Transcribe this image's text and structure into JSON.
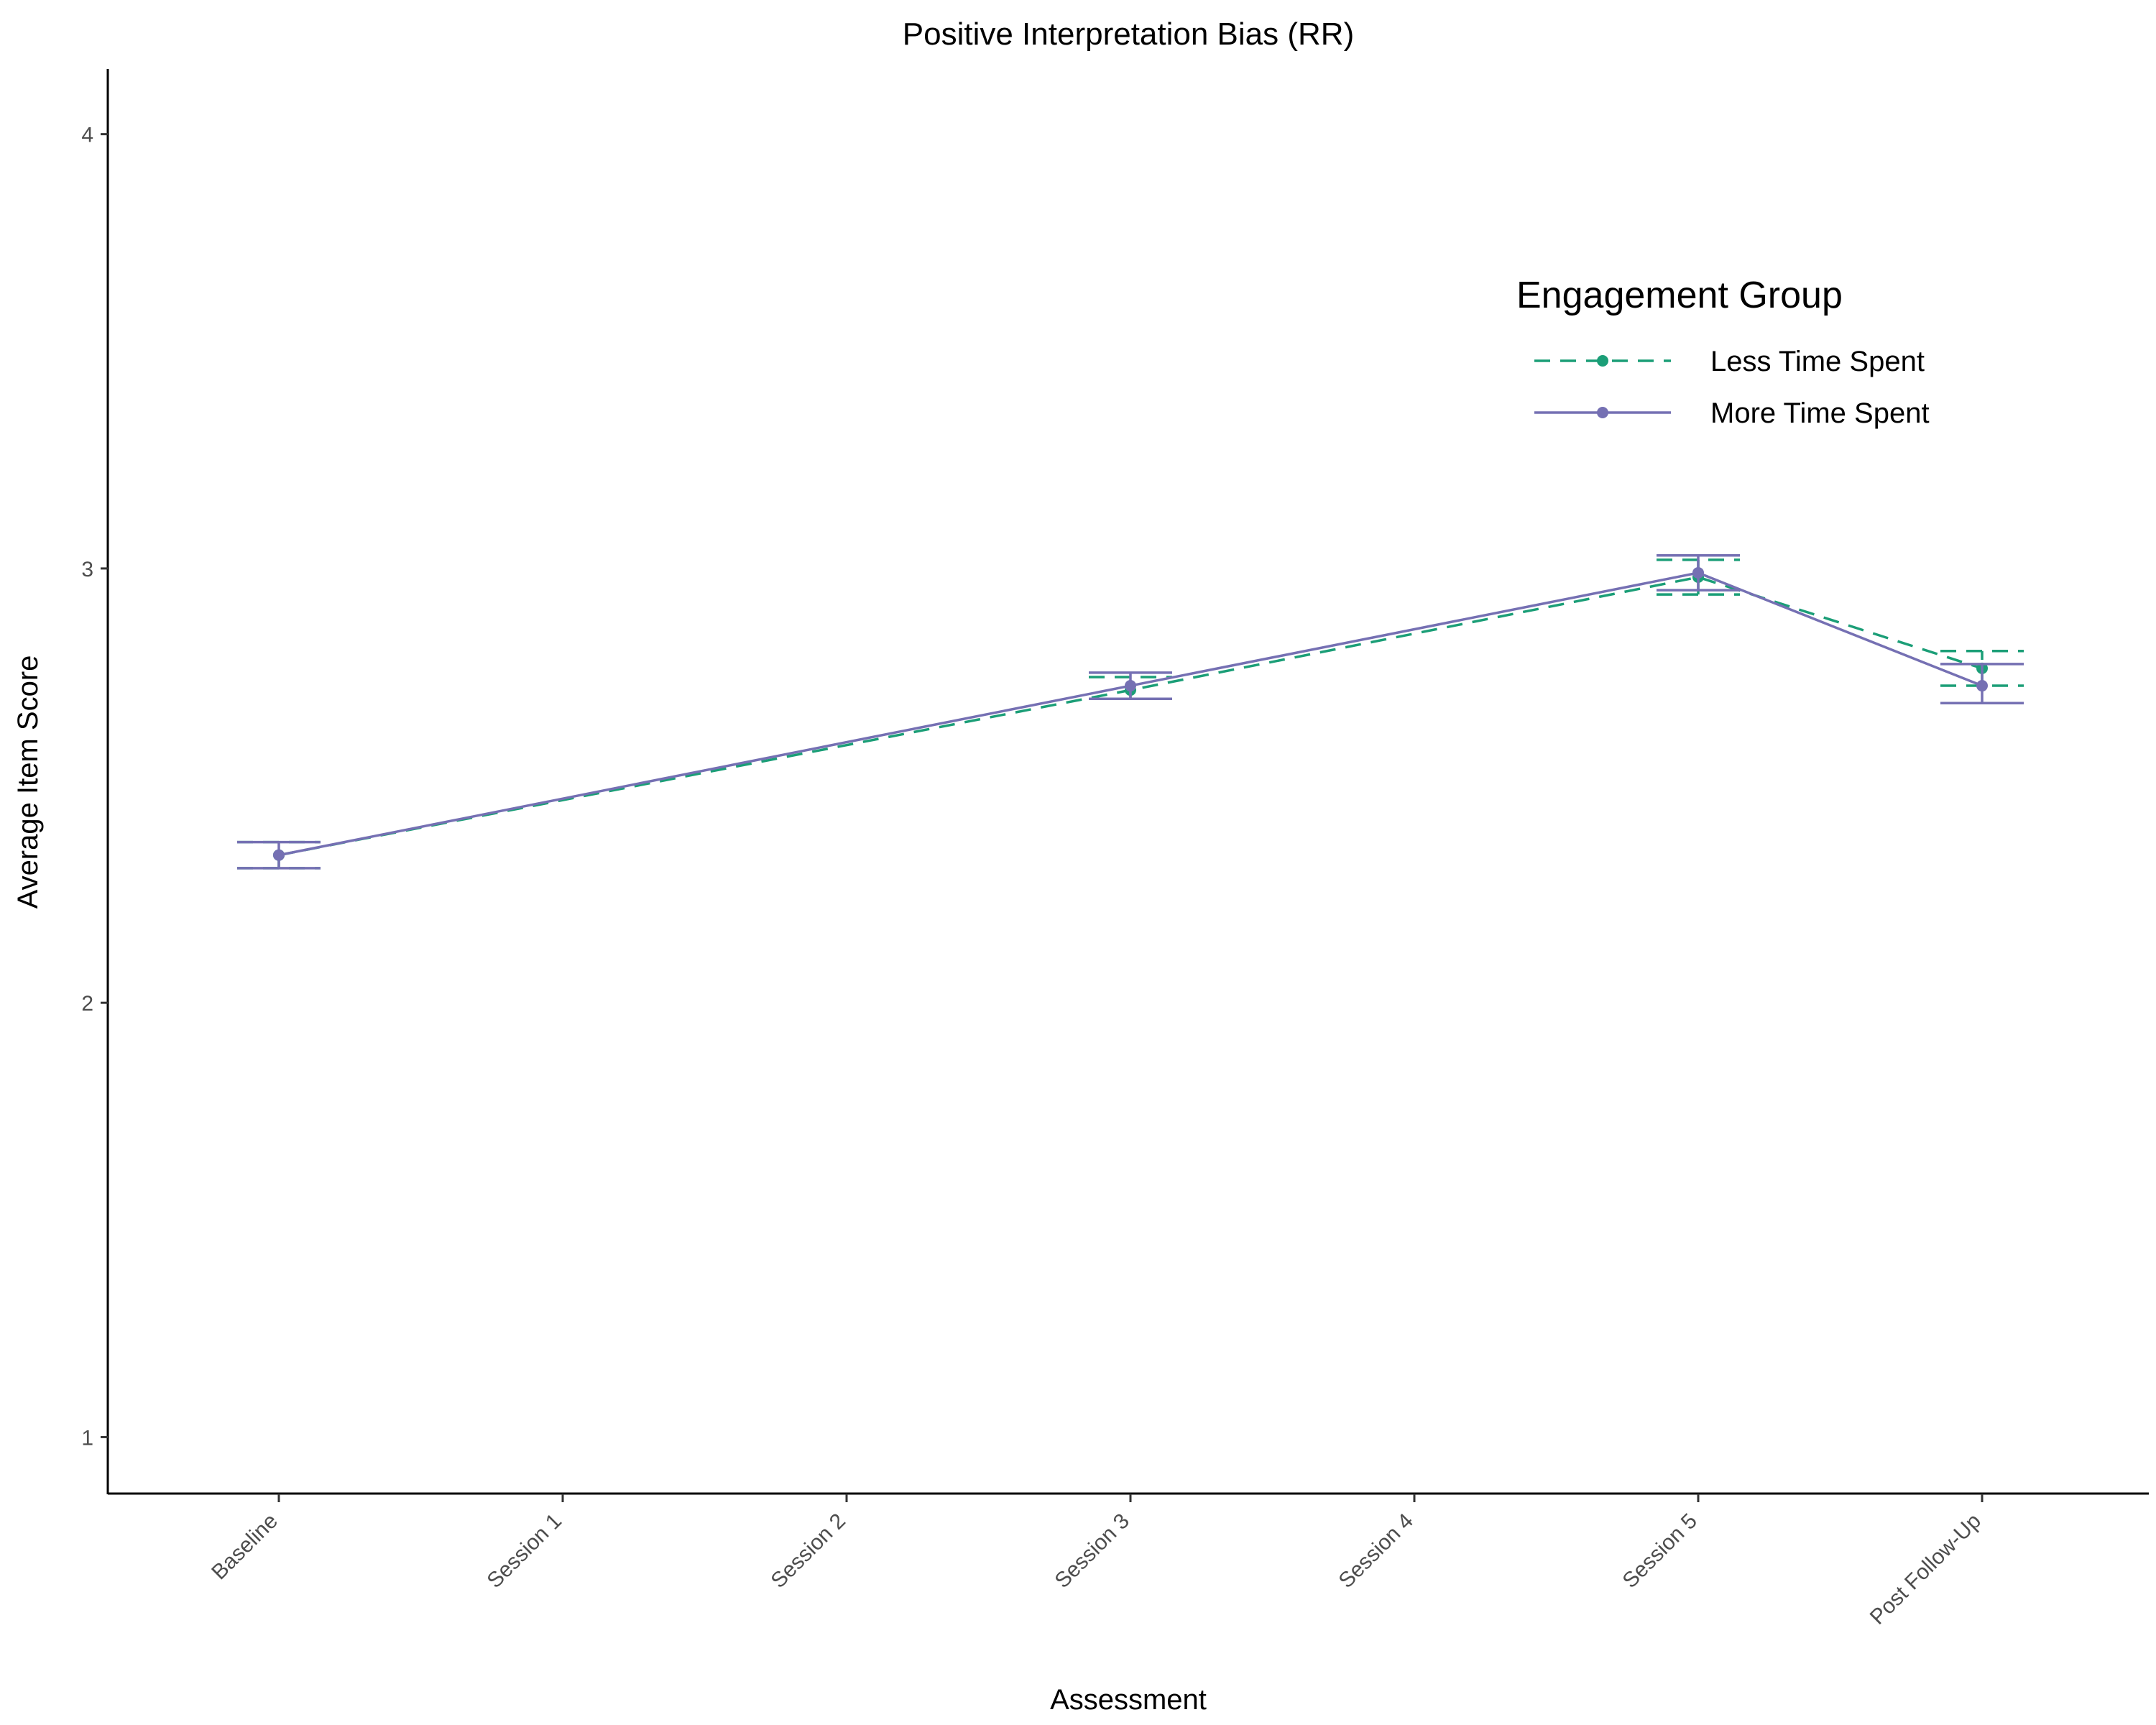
{
  "chart_data": {
    "type": "line",
    "title": "Positive Interpretation Bias (RR)",
    "xlabel": "Assessment",
    "ylabel": "Average Item Score",
    "categories": [
      "Baseline",
      "Session 1",
      "Session 2",
      "Session 3",
      "Session 4",
      "Session 5",
      "Post Follow-Up"
    ],
    "ylim": [
      0.87,
      4.15
    ],
    "yticks": [
      1,
      2,
      3,
      4
    ],
    "grid": false,
    "legend": {
      "title": "Engagement Group",
      "position": "top-right"
    },
    "series": [
      {
        "name": "Less Time Spent",
        "color": "#1b9e77",
        "dash": "dashed",
        "points": [
          {
            "category": "Baseline",
            "y": 2.34,
            "low": 2.31,
            "high": 2.37
          },
          {
            "category": "Session 3",
            "y": 2.72,
            "low": 2.7,
            "high": 2.75
          },
          {
            "category": "Session 5",
            "y": 2.98,
            "low": 2.94,
            "high": 3.02
          },
          {
            "category": "Post Follow-Up",
            "y": 2.77,
            "low": 2.73,
            "high": 2.81
          }
        ]
      },
      {
        "name": "More Time Spent",
        "color": "#7570b3",
        "dash": "solid",
        "points": [
          {
            "category": "Baseline",
            "y": 2.34,
            "low": 2.31,
            "high": 2.37
          },
          {
            "category": "Session 3",
            "y": 2.73,
            "low": 2.7,
            "high": 2.76
          },
          {
            "category": "Session 5",
            "y": 2.99,
            "low": 2.95,
            "high": 3.03
          },
          {
            "category": "Post Follow-Up",
            "y": 2.73,
            "low": 2.69,
            "high": 2.78
          }
        ]
      }
    ]
  }
}
